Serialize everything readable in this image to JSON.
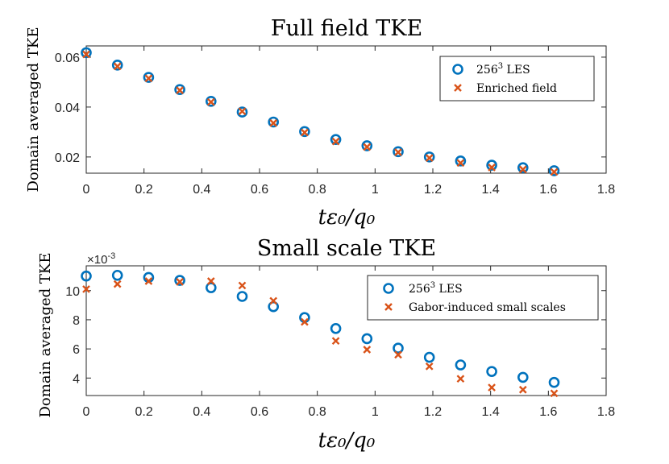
{
  "colors": {
    "les": "#0072BD",
    "model": "#D95319",
    "axis": "#262626"
  },
  "chart_data": [
    {
      "type": "scatter",
      "title": "Full field TKE",
      "xlabel": "tε₀/q₀",
      "ylabel": "Domain averaged TKE",
      "xlim": [
        0,
        1.8
      ],
      "ylim": [
        0.0135,
        0.0645
      ],
      "xticks": [
        "0",
        "0.2",
        "0.4",
        "0.6",
        "0.8",
        "1",
        "1.2",
        "1.4",
        "1.6",
        "1.8"
      ],
      "yticks": [
        "0.02",
        "0.04",
        "0.06"
      ],
      "x": [
        0,
        0.108,
        0.216,
        0.324,
        0.432,
        0.54,
        0.648,
        0.756,
        0.864,
        0.972,
        1.08,
        1.188,
        1.296,
        1.404,
        1.512,
        1.62
      ],
      "series": [
        {
          "name": "256³ LES",
          "marker": "circle",
          "values": [
            0.0618,
            0.0568,
            0.0519,
            0.047,
            0.0423,
            0.038,
            0.034,
            0.0302,
            0.027,
            0.0245,
            0.0221,
            0.02,
            0.0184,
            0.0167,
            0.0157,
            0.0145
          ]
        },
        {
          "name": "Enriched field",
          "marker": "x",
          "values": [
            0.0611,
            0.0563,
            0.0515,
            0.0467,
            0.042,
            0.0383,
            0.0336,
            0.0298,
            0.0262,
            0.024,
            0.0219,
            0.0196,
            0.0176,
            0.0158,
            0.015,
            0.014
          ]
        }
      ],
      "legend": {
        "position": "top-right",
        "les_base": "256",
        "les_sup": "3",
        "les_suffix": " LES",
        "model_label": "Enriched field"
      }
    },
    {
      "type": "scatter",
      "title": "Small scale TKE",
      "xlabel": "tε₀/q₀",
      "ylabel": "Domain averaged TKE",
      "exponent_label": "×10",
      "exponent_power": "-3",
      "xlim": [
        0,
        1.8
      ],
      "ylim": [
        2.8,
        11.7
      ],
      "xticks": [
        "0",
        "0.2",
        "0.4",
        "0.6",
        "0.8",
        "1",
        "1.2",
        "1.4",
        "1.6",
        "1.8"
      ],
      "yticks": [
        "4",
        "6",
        "8",
        "10"
      ],
      "x": [
        0,
        0.108,
        0.216,
        0.324,
        0.432,
        0.54,
        0.648,
        0.756,
        0.864,
        0.972,
        1.08,
        1.188,
        1.296,
        1.404,
        1.512,
        1.62
      ],
      "series": [
        {
          "name": "256³ LES",
          "marker": "circle",
          "values": [
            11.0,
            11.05,
            10.9,
            10.7,
            10.2,
            9.6,
            8.9,
            8.15,
            7.4,
            6.7,
            6.05,
            5.42,
            4.9,
            4.45,
            4.05,
            3.7
          ]
        },
        {
          "name": "Gabor-induced small scales",
          "marker": "x",
          "values": [
            10.1,
            10.45,
            10.65,
            10.6,
            10.65,
            10.35,
            9.3,
            7.85,
            6.55,
            5.95,
            5.6,
            4.8,
            3.95,
            3.35,
            3.2,
            2.95
          ]
        }
      ],
      "legend": {
        "position": "top-right",
        "les_base": "256",
        "les_sup": "3",
        "les_suffix": " LES",
        "model_label": "Gabor-induced small scales"
      }
    }
  ]
}
